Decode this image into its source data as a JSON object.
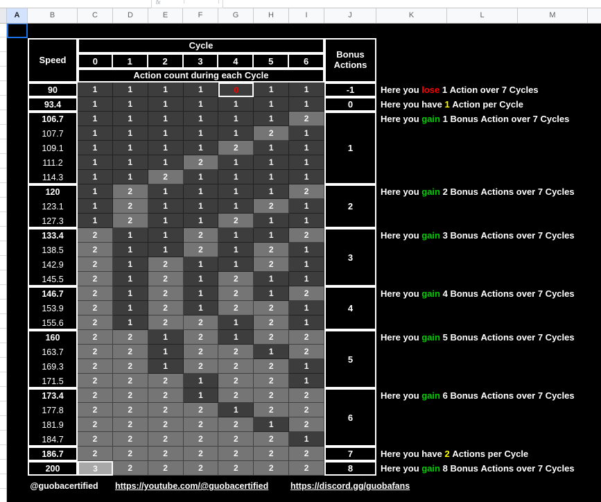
{
  "toolbar": {
    "fx_label": "fx"
  },
  "column_headers": [
    "A",
    "B",
    "C",
    "D",
    "E",
    "F",
    "G",
    "H",
    "I",
    "J",
    "K",
    "L",
    "M"
  ],
  "selected_column": "A",
  "table": {
    "speed_label": "Speed",
    "cycle_label": "Cycle",
    "cycle_numbers": [
      "0",
      "1",
      "2",
      "3",
      "4",
      "5",
      "6"
    ],
    "action_count_label": "Action count during each Cycle",
    "bonus_label": "Bonus Actions",
    "rows": [
      {
        "speed": "90",
        "bold": true,
        "cells": [
          1,
          1,
          1,
          1,
          0,
          1,
          1
        ]
      },
      {
        "speed": "93.4",
        "bold": true,
        "cells": [
          1,
          1,
          1,
          1,
          1,
          1,
          1
        ]
      },
      {
        "speed": "106.7",
        "bold": true,
        "cells": [
          1,
          1,
          1,
          1,
          1,
          1,
          2
        ]
      },
      {
        "speed": "107.7",
        "bold": false,
        "cells": [
          1,
          1,
          1,
          1,
          1,
          2,
          1
        ]
      },
      {
        "speed": "109.1",
        "bold": false,
        "cells": [
          1,
          1,
          1,
          1,
          2,
          1,
          1
        ]
      },
      {
        "speed": "111.2",
        "bold": false,
        "cells": [
          1,
          1,
          1,
          2,
          1,
          1,
          1
        ]
      },
      {
        "speed": "114.3",
        "bold": false,
        "cells": [
          1,
          1,
          2,
          1,
          1,
          1,
          1
        ]
      },
      {
        "speed": "120",
        "bold": true,
        "cells": [
          1,
          2,
          1,
          1,
          1,
          1,
          2
        ]
      },
      {
        "speed": "123.1",
        "bold": false,
        "cells": [
          1,
          2,
          1,
          1,
          1,
          2,
          1
        ]
      },
      {
        "speed": "127.3",
        "bold": false,
        "cells": [
          1,
          2,
          1,
          1,
          2,
          1,
          1
        ]
      },
      {
        "speed": "133.4",
        "bold": true,
        "cells": [
          2,
          1,
          1,
          2,
          1,
          1,
          2
        ]
      },
      {
        "speed": "138.5",
        "bold": false,
        "cells": [
          2,
          1,
          1,
          2,
          1,
          2,
          1
        ]
      },
      {
        "speed": "142.9",
        "bold": false,
        "cells": [
          2,
          1,
          2,
          1,
          1,
          2,
          1
        ]
      },
      {
        "speed": "145.5",
        "bold": false,
        "cells": [
          2,
          1,
          2,
          1,
          2,
          1,
          1
        ]
      },
      {
        "speed": "146.7",
        "bold": true,
        "cells": [
          2,
          1,
          2,
          1,
          2,
          1,
          2
        ]
      },
      {
        "speed": "153.9",
        "bold": false,
        "cells": [
          2,
          1,
          2,
          1,
          2,
          2,
          1
        ]
      },
      {
        "speed": "155.6",
        "bold": false,
        "cells": [
          2,
          1,
          2,
          2,
          1,
          2,
          1
        ]
      },
      {
        "speed": "160",
        "bold": true,
        "cells": [
          2,
          2,
          1,
          2,
          1,
          2,
          2
        ]
      },
      {
        "speed": "163.7",
        "bold": false,
        "cells": [
          2,
          2,
          1,
          2,
          2,
          1,
          2
        ]
      },
      {
        "speed": "169.3",
        "bold": false,
        "cells": [
          2,
          2,
          1,
          2,
          2,
          2,
          1
        ]
      },
      {
        "speed": "171.5",
        "bold": false,
        "cells": [
          2,
          2,
          2,
          1,
          2,
          2,
          1
        ]
      },
      {
        "speed": "173.4",
        "bold": true,
        "cells": [
          2,
          2,
          2,
          1,
          2,
          2,
          2
        ]
      },
      {
        "speed": "177.8",
        "bold": false,
        "cells": [
          2,
          2,
          2,
          2,
          1,
          2,
          2
        ]
      },
      {
        "speed": "181.9",
        "bold": false,
        "cells": [
          2,
          2,
          2,
          2,
          2,
          1,
          2
        ]
      },
      {
        "speed": "184.7",
        "bold": false,
        "cells": [
          2,
          2,
          2,
          2,
          2,
          2,
          1
        ]
      },
      {
        "speed": "186.7",
        "bold": true,
        "cells": [
          2,
          2,
          2,
          2,
          2,
          2,
          2
        ]
      },
      {
        "speed": "200",
        "bold": true,
        "cells": [
          3,
          2,
          2,
          2,
          2,
          2,
          2
        ]
      }
    ],
    "groups": [
      {
        "start": 0,
        "len": 1,
        "bonus": "-1",
        "message": [
          {
            "text": "Here you "
          },
          {
            "text": "lose",
            "color": "red"
          },
          {
            "text": " 1 Action over 7 Cycles"
          }
        ]
      },
      {
        "start": 1,
        "len": 1,
        "bonus": "0",
        "message": [
          {
            "text": "Here you have "
          },
          {
            "text": "1",
            "color": "yellow"
          },
          {
            "text": " Action per Cycle"
          }
        ]
      },
      {
        "start": 2,
        "len": 5,
        "bonus": "1",
        "message": [
          {
            "text": "Here you "
          },
          {
            "text": "gain",
            "color": "green"
          },
          {
            "text": " 1 Bonus Action over 7 Cycles"
          }
        ]
      },
      {
        "start": 7,
        "len": 3,
        "bonus": "2",
        "message": [
          {
            "text": "Here you "
          },
          {
            "text": "gain",
            "color": "green"
          },
          {
            "text": " 2 Bonus Actions over 7 Cycles"
          }
        ]
      },
      {
        "start": 10,
        "len": 4,
        "bonus": "3",
        "message": [
          {
            "text": "Here you "
          },
          {
            "text": "gain",
            "color": "green"
          },
          {
            "text": " 3 Bonus Actions over 7 Cycles"
          }
        ]
      },
      {
        "start": 14,
        "len": 3,
        "bonus": "4",
        "message": [
          {
            "text": "Here you "
          },
          {
            "text": "gain",
            "color": "green"
          },
          {
            "text": " 4 Bonus Actions over 7 Cycles"
          }
        ]
      },
      {
        "start": 17,
        "len": 4,
        "bonus": "5",
        "message": [
          {
            "text": "Here you "
          },
          {
            "text": "gain",
            "color": "green"
          },
          {
            "text": " 5 Bonus Actions over 7 Cycles"
          }
        ]
      },
      {
        "start": 21,
        "len": 4,
        "bonus": "6",
        "message": [
          {
            "text": "Here you "
          },
          {
            "text": "gain",
            "color": "green"
          },
          {
            "text": " 6 Bonus Actions over 7 Cycles"
          }
        ]
      },
      {
        "start": 25,
        "len": 1,
        "bonus": "7",
        "message": [
          {
            "text": "Here you have "
          },
          {
            "text": "2",
            "color": "yellow"
          },
          {
            "text": " Actions per Cycle"
          }
        ]
      },
      {
        "start": 26,
        "len": 1,
        "bonus": "8",
        "message": [
          {
            "text": "Here you "
          },
          {
            "text": "gain",
            "color": "green"
          },
          {
            "text": " 8 Bonus Actions over 7 Cycles"
          }
        ]
      }
    ]
  },
  "footer": {
    "handle": "@guobacertified",
    "youtube": "https://youtube.com/@guobacertified",
    "discord": "https://discord.gg/guobafans"
  },
  "colors": {
    "red": "#ff0000",
    "green": "#00cc00",
    "yellow": "#ffff00",
    "cell_dark": "#3d3d3d",
    "cell_mid": "#757575",
    "cell_light": "#a8a8a8",
    "selection_blue": "#1a73e8"
  }
}
